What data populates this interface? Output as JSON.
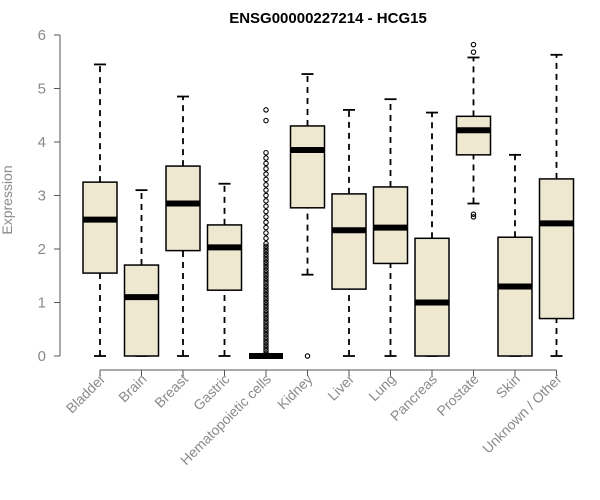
{
  "chart_data": {
    "type": "boxplot",
    "title": "ENSG00000227214 - HCG15",
    "ylabel": "Expression",
    "xlabel": "",
    "ylim": [
      0,
      6
    ],
    "yticks": [
      0,
      1,
      2,
      3,
      4,
      5,
      6
    ],
    "box_fill": "#efe8d0",
    "categories": [
      "Bladder",
      "Brain",
      "Breast",
      "Gastric",
      "Hematopoietic cells",
      "Kidney",
      "Liver",
      "Lung",
      "Pancreas",
      "Prostate",
      "Skin",
      "Unknown / Other"
    ],
    "boxes": [
      {
        "min": 0,
        "q1": 1.55,
        "median": 2.55,
        "q3": 3.25,
        "max": 5.45,
        "outliers": []
      },
      {
        "min": 0,
        "q1": 0,
        "median": 1.1,
        "q3": 1.7,
        "max": 3.1,
        "outliers": []
      },
      {
        "min": 0,
        "q1": 1.97,
        "median": 2.85,
        "q3": 3.55,
        "max": 4.85,
        "outliers": []
      },
      {
        "min": 0,
        "q1": 1.23,
        "median": 2.03,
        "q3": 2.45,
        "max": 3.22,
        "outliers": []
      },
      {
        "min": 0,
        "q1": 0,
        "median": 0,
        "q3": 0,
        "max": 0,
        "outliers": [
          0.05,
          0.1,
          0.15,
          0.2,
          0.25,
          0.3,
          0.35,
          0.4,
          0.45,
          0.5,
          0.55,
          0.6,
          0.65,
          0.7,
          0.75,
          0.8,
          0.85,
          0.9,
          0.95,
          1.0,
          1.05,
          1.1,
          1.15,
          1.2,
          1.25,
          1.3,
          1.35,
          1.4,
          1.45,
          1.5,
          1.55,
          1.6,
          1.65,
          1.7,
          1.75,
          1.8,
          1.85,
          1.9,
          1.95,
          2.0,
          2.05,
          2.1,
          2.2,
          2.3,
          2.4,
          2.5,
          2.6,
          2.7,
          2.8,
          2.9,
          3.0,
          3.1,
          3.2,
          3.3,
          3.4,
          3.5,
          3.6,
          3.7,
          3.8,
          4.4,
          4.6
        ]
      },
      {
        "min": 1.52,
        "q1": 2.77,
        "median": 3.85,
        "q3": 4.3,
        "max": 5.27,
        "outliers": [
          0
        ]
      },
      {
        "min": 0,
        "q1": 1.25,
        "median": 2.35,
        "q3": 3.03,
        "max": 4.6,
        "outliers": []
      },
      {
        "min": 0,
        "q1": 1.73,
        "median": 2.4,
        "q3": 3.16,
        "max": 4.8,
        "outliers": []
      },
      {
        "min": 0,
        "q1": 0,
        "median": 1.0,
        "q3": 2.2,
        "max": 4.55,
        "outliers": []
      },
      {
        "min": 2.85,
        "q1": 3.76,
        "median": 4.22,
        "q3": 4.48,
        "max": 5.58,
        "outliers": [
          2.6,
          2.65,
          5.82,
          5.68
        ]
      },
      {
        "min": 0,
        "q1": 0,
        "median": 1.3,
        "q3": 2.22,
        "max": 3.76,
        "outliers": []
      },
      {
        "min": 0,
        "q1": 0.7,
        "median": 2.48,
        "q3": 3.31,
        "max": 5.63,
        "outliers": []
      }
    ]
  }
}
